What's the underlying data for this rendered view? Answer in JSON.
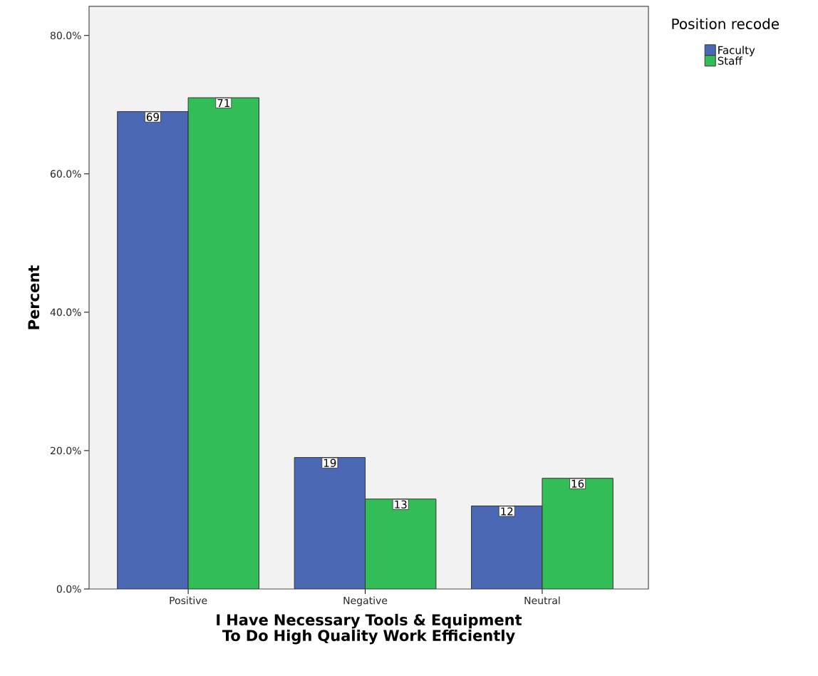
{
  "chart_data": {
    "type": "bar",
    "categories": [
      "Positive",
      "Negative",
      "Neutral"
    ],
    "series": [
      {
        "name": "Faculty",
        "color": "#4b68b5",
        "values": [
          69,
          19,
          12
        ]
      },
      {
        "name": "Staff",
        "color": "#33bd57",
        "values": [
          71,
          13,
          16
        ]
      }
    ],
    "xlabel": "I Have Necessary Tools & Equipment To Do High Quality Work Efficiently",
    "ylabel": "Percent",
    "legend_title": "Position recode",
    "legend": "top right",
    "data_labels": true,
    "grid": false,
    "ylim": [
      0,
      84.2
    ],
    "yticks": [
      {
        "value": 0,
        "label": "0.0%"
      },
      {
        "value": 20,
        "label": "20.0%"
      },
      {
        "value": 40,
        "label": "40.0%"
      },
      {
        "value": 60,
        "label": "60.0%"
      },
      {
        "value": 80,
        "label": "80.0%"
      }
    ]
  }
}
